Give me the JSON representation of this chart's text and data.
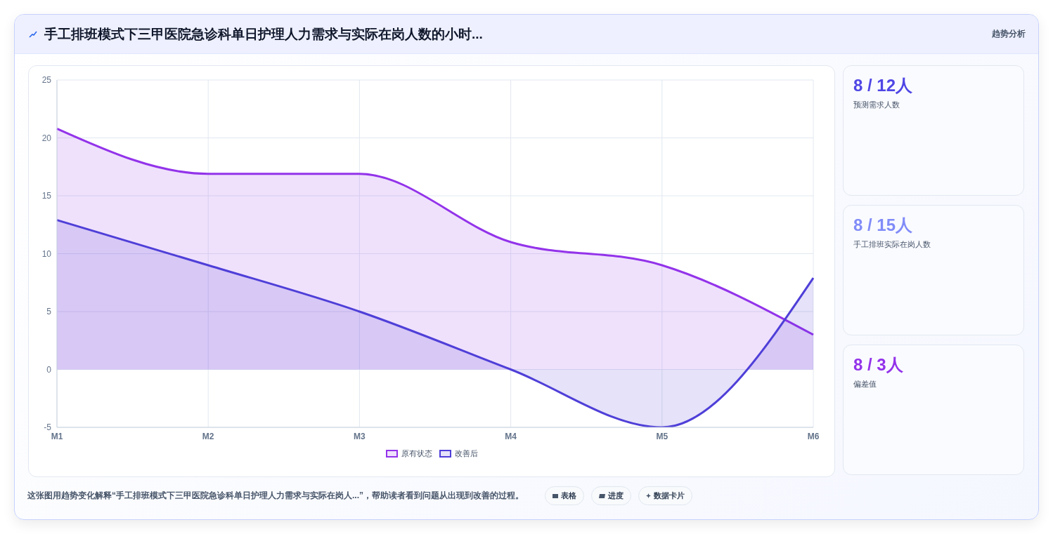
{
  "chart_data": {
    "type": "area",
    "title": "手工排班模式下三甲医院急诊科单日护理人力需求与实际在岗人数的小时...",
    "categories": [
      "M1",
      "M2",
      "M3",
      "M4",
      "M5",
      "M6"
    ],
    "series": [
      {
        "name": "原有状态",
        "color": "#9333ea",
        "values": [
          20.8,
          16.9,
          16.9,
          11,
          9,
          3
        ]
      },
      {
        "name": "改善后",
        "color": "#4f3fd8",
        "values": [
          12.9,
          9,
          5,
          0,
          -5,
          7.9
        ]
      }
    ],
    "ylim": [
      -5,
      25
    ],
    "yticks": [
      -5,
      0,
      5,
      10,
      15,
      20,
      25
    ],
    "grid": true,
    "legend": "bottom",
    "marker": "none",
    "line_style": "solid",
    "annotations": [
      "趋势分析",
      "8 / 12人",
      "预测需求人数",
      "8 / 15人",
      "手工排班实际在岗人数",
      "8 / 3人",
      "偏差值",
      "这张图用趋势变化解释“手工排班模式下三甲医院急诊科单日护理人力需求与实际在岗人...”，帮助读者看到问题从出现到改善的过程。",
      "表格",
      "进度",
      "数据卡片"
    ]
  }
}
